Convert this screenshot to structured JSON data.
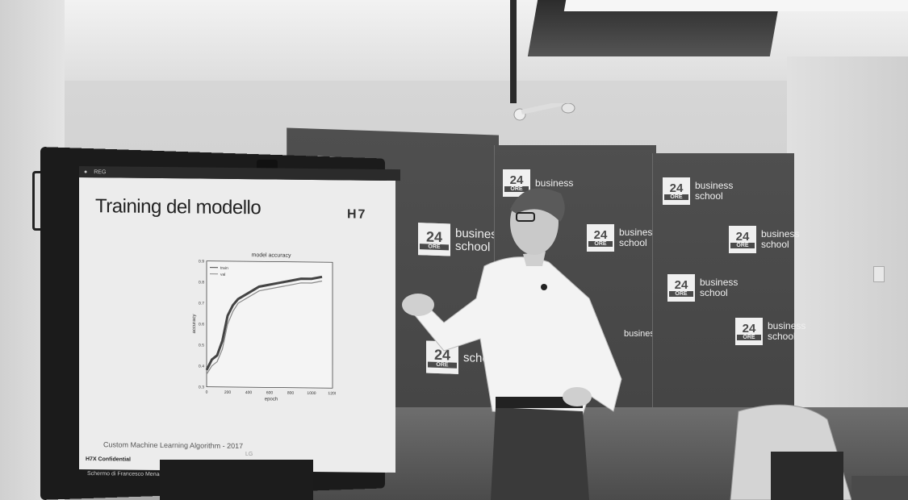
{
  "backdrop": {
    "logo_number": "24",
    "logo_sub": "ORE",
    "logo_line1": "business",
    "logo_line2": "school"
  },
  "screen": {
    "taskbar_label": "REG",
    "slide_title": "Training del modello",
    "brand_mark": "H7",
    "footer": "Custom Machine Learning Algorithm - 2017",
    "confidential": "H7X Confidential",
    "credit": "Schermo di Francesco Menagen",
    "monitor_brand": "LG"
  },
  "chart_data": {
    "type": "line",
    "title": "model accuracy",
    "xlabel": "epoch",
    "ylabel": "accuracy",
    "xlim": [
      0,
      1200
    ],
    "ylim": [
      0.3,
      0.9
    ],
    "xticks": [
      0,
      200,
      400,
      600,
      800,
      1000,
      1200
    ],
    "yticks": [
      0.3,
      0.4,
      0.5,
      0.6,
      0.7,
      0.8,
      0.9
    ],
    "legend_placement": "top-left",
    "series": [
      {
        "name": "train",
        "x": [
          0,
          50,
          100,
          150,
          200,
          250,
          300,
          400,
          500,
          600,
          700,
          800,
          900,
          1000,
          1100
        ],
        "values": [
          0.38,
          0.43,
          0.45,
          0.52,
          0.64,
          0.69,
          0.72,
          0.75,
          0.78,
          0.79,
          0.8,
          0.81,
          0.82,
          0.82,
          0.83
        ]
      },
      {
        "name": "val",
        "x": [
          0,
          50,
          100,
          150,
          200,
          250,
          300,
          400,
          500,
          600,
          700,
          800,
          900,
          1000,
          1100
        ],
        "values": [
          0.36,
          0.4,
          0.42,
          0.48,
          0.6,
          0.66,
          0.7,
          0.73,
          0.76,
          0.77,
          0.78,
          0.79,
          0.8,
          0.8,
          0.81
        ]
      }
    ]
  }
}
